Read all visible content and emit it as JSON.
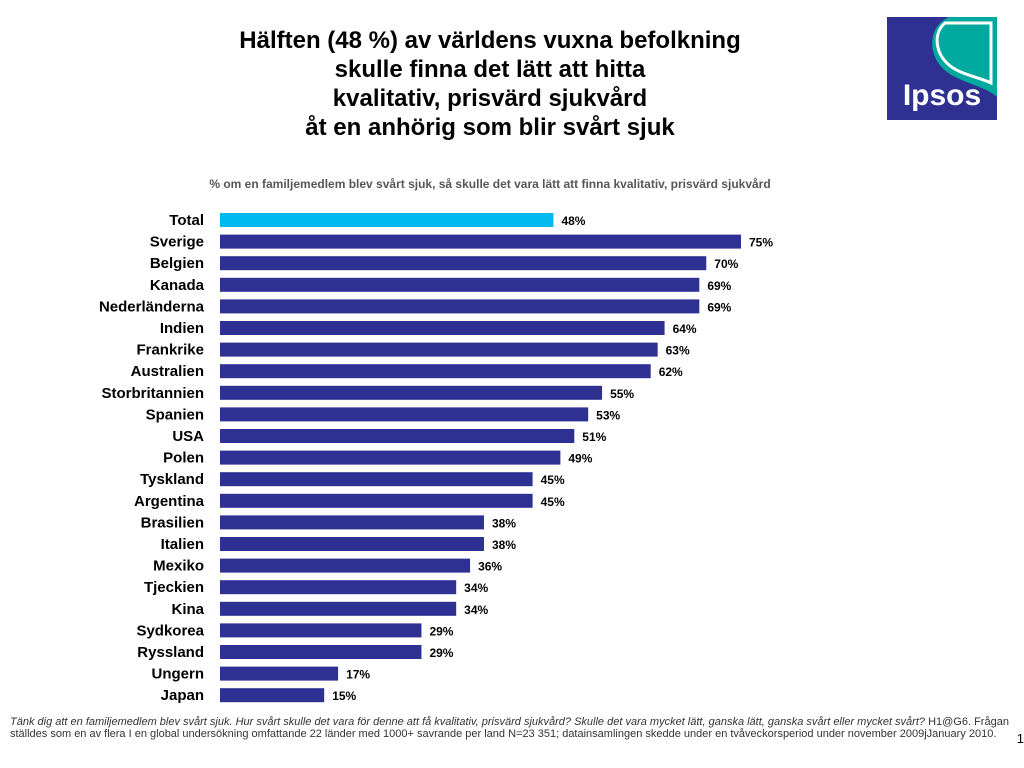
{
  "header": {
    "title_lines": [
      "Hälften (48 %) av världens vuxna befolkning",
      "skulle finna det lätt att hitta",
      "kvalitativ, prisvärd sjukvård",
      "åt en anhörig som blir svårt sjuk"
    ],
    "logo_text": "Ipsos"
  },
  "chart_data": {
    "type": "bar",
    "orientation": "horizontal",
    "subtitle": "% om en familjemedlem blev svårt sjuk, så skulle det vara lätt att finna kvalitativ, prisvärd sjukvård",
    "categories": [
      "Total",
      "Sverige",
      "Belgien",
      "Kanada",
      "Nederländerna",
      "Indien",
      "Frankrike",
      "Australien",
      "Storbritannien",
      "Spanien",
      "USA",
      "Polen",
      "Tyskland",
      "Argentina",
      "Brasilien",
      "Italien",
      "Mexiko",
      "Tjeckien",
      "Kina",
      "Sydkorea",
      "Ryssland",
      "Ungern",
      "Japan"
    ],
    "values": [
      48,
      75,
      70,
      69,
      69,
      64,
      63,
      62,
      55,
      53,
      51,
      49,
      45,
      45,
      38,
      38,
      36,
      34,
      34,
      29,
      29,
      17,
      15
    ],
    "value_labels": [
      "48%",
      "75%",
      "70%",
      "69%",
      "69%",
      "64%",
      "63%",
      "62%",
      "55%",
      "53%",
      "51%",
      "49%",
      "45%",
      "45%",
      "38%",
      "38%",
      "36%",
      "34%",
      "34%",
      "29%",
      "29%",
      "17%",
      "15%"
    ],
    "highlight_index": 0,
    "colors": {
      "highlight": "#00b9f0",
      "bar": "#2e3192"
    },
    "xlim": [
      0,
      75
    ],
    "grid": false,
    "legend": "none"
  },
  "footer": {
    "question": "Tänk dig att en familjemedlem blev svårt sjuk.  Hur svårt skulle det vara för denne att få kvalitativ, prisvärd sjukvård?  Skulle det vara mycket lätt, ganska lätt, ganska svårt eller mycket svårt?",
    "method": " H1@G6. Frågan ställdes som en av flera I en global undersökning omfattande 22 länder med 1000+ savrande per land N=23 351; datainsamlingen skedde under en tvåveckorsperiod under november 2009jJanuary 2010.",
    "page_number": "1"
  }
}
